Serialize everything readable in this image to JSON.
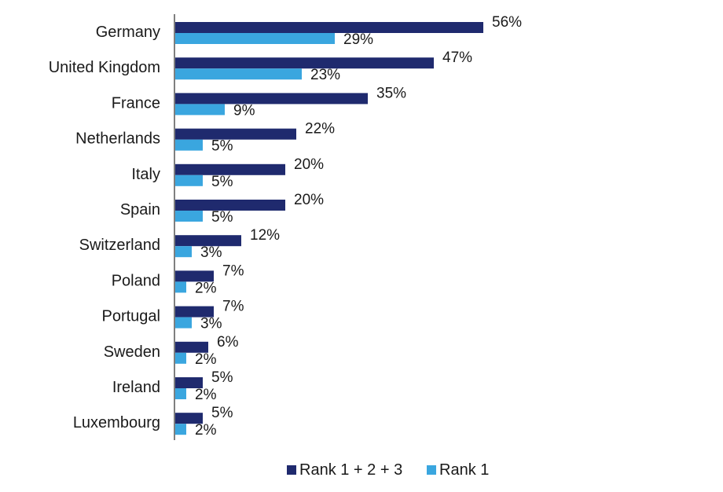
{
  "chart_data": {
    "type": "bar",
    "orientation": "horizontal",
    "categories": [
      "Germany",
      "United Kingdom",
      "France",
      "Netherlands",
      "Italy",
      "Spain",
      "Switzerland",
      "Poland",
      "Portugal",
      "Sweden",
      "Ireland",
      "Luxembourg"
    ],
    "series": [
      {
        "name": "Rank 1 + 2 + 3",
        "color": "#1f2a6e",
        "values": [
          56,
          47,
          35,
          22,
          20,
          20,
          12,
          7,
          7,
          6,
          5,
          5
        ],
        "labels": [
          "56%",
          "47%",
          "35%",
          "22%",
          "20%",
          "20%",
          "12%",
          "7%",
          "7%",
          "6%",
          "5%",
          "5%"
        ]
      },
      {
        "name": "Rank 1",
        "color": "#3aa6df",
        "values": [
          29,
          23,
          9,
          5,
          5,
          5,
          3,
          2,
          3,
          2,
          2,
          2
        ],
        "labels": [
          "29%",
          "23%",
          "9%",
          "5%",
          "5%",
          "5%",
          "3%",
          "2%",
          "3%",
          "2%",
          "2%",
          "2%"
        ]
      }
    ],
    "unit": "%",
    "xlim": [
      0,
      60
    ],
    "grid": false,
    "legend_position": "bottom"
  }
}
